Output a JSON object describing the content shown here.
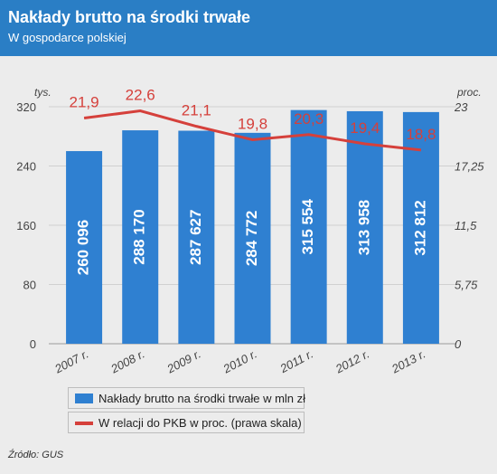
{
  "header": {
    "title": "Nakłady brutto na środki trwałe",
    "subtitle": "W gospodarce polskiej"
  },
  "source": "Źródło: GUS",
  "colors": {
    "bars": "#2f80d1",
    "line": "#d5403b",
    "header": "#2a7ec5"
  },
  "chart_data": {
    "type": "bar",
    "categories": [
      "2007 r.",
      "2008 r.",
      "2009 r.",
      "2010 r.",
      "2011 r.",
      "2012 r.",
      "2013 r."
    ],
    "series": [
      {
        "name": "Nakłady brutto na środki trwałe w mln zł",
        "type": "bar",
        "axis": "left",
        "values": [
          260096,
          288170,
          287627,
          284772,
          315554,
          313958,
          312812
        ],
        "labels": [
          "260 096",
          "288 170",
          "287 627",
          "284 772",
          "315 554",
          "313 958",
          "312 812"
        ]
      },
      {
        "name": "W relacji do PKB w proc. (prawa skala)",
        "type": "line",
        "axis": "right",
        "values": [
          21.9,
          22.6,
          21.1,
          19.8,
          20.3,
          19.4,
          18.8
        ],
        "labels": [
          "21,9",
          "22,6",
          "21,1",
          "19,8",
          "20,3",
          "19,4",
          "18,8"
        ]
      }
    ],
    "left_axis": {
      "unit": "tys.",
      "ylim": [
        0,
        320
      ],
      "ticks": [
        "0",
        "80",
        "160",
        "240",
        "320"
      ]
    },
    "right_axis": {
      "unit": "proc.",
      "ylim": [
        0,
        23
      ],
      "ticks": [
        "0",
        "5,75",
        "11,5",
        "17,25",
        "23"
      ]
    },
    "grid": true,
    "legend_position": "bottom-left"
  }
}
